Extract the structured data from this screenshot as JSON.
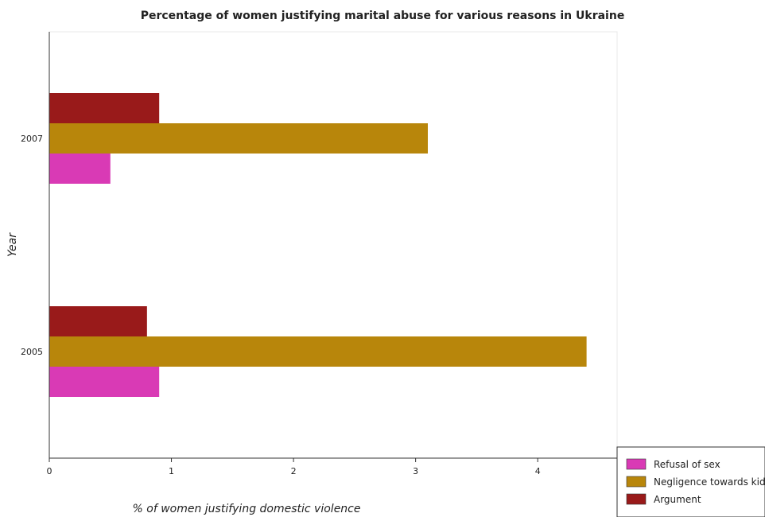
{
  "chart_data": {
    "type": "bar",
    "orientation": "horizontal",
    "title": "Percentage of women justifying marital abuse for various reasons in Ukraine",
    "xlabel": "% of women justifying domestic violence",
    "ylabel": "Year",
    "categories": [
      "2005",
      "2007"
    ],
    "series": [
      {
        "name": "Refusal of sex",
        "color": "#d93ab5",
        "values": [
          0.9,
          0.5
        ]
      },
      {
        "name": "Negligence towards kids",
        "color": "#b8860b",
        "values": [
          4.4,
          3.1
        ]
      },
      {
        "name": "Argument",
        "color": "#991a1a",
        "values": [
          0.8,
          0.9
        ]
      }
    ],
    "xlim": [
      0,
      4.65
    ],
    "xticks": [
      "0",
      "1",
      "2",
      "3",
      "4"
    ],
    "grid": false,
    "legend_position": "bottom-right"
  }
}
